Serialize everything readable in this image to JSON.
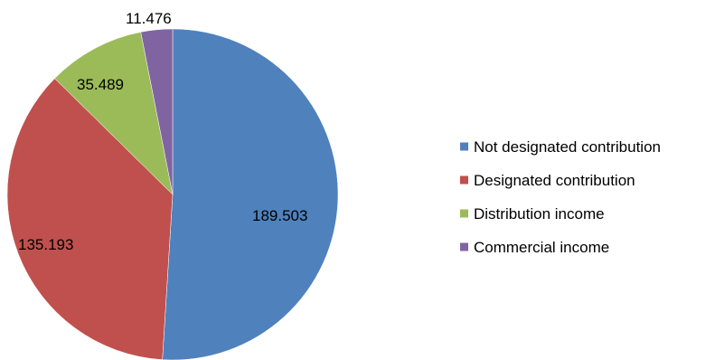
{
  "chart_data": {
    "type": "pie",
    "categories": [
      "Not designated contribution",
      "Designated contribution",
      "Distribution income",
      "Commercial income"
    ],
    "values": [
      189.503,
      135.193,
      35.489,
      11.476
    ],
    "value_labels": [
      "189.503",
      "135.193",
      "35.489",
      "11.476"
    ],
    "colors": [
      "#4f81bd",
      "#c0504d",
      "#9bbb59",
      "#8064a2"
    ],
    "start_angle": "12 o'clock",
    "direction": "clockwise",
    "legend": "right"
  }
}
